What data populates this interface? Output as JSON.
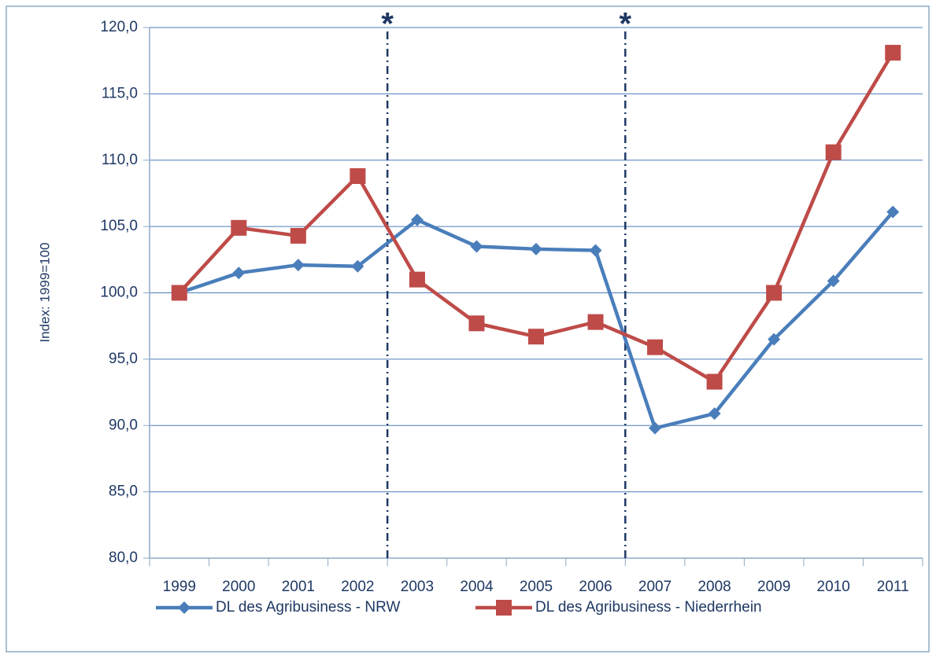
{
  "chart_data": {
    "type": "line",
    "y_axis_label": "Index: 1999=100",
    "categories": [
      "1999",
      "2000",
      "2001",
      "2002",
      "2003",
      "2004",
      "2005",
      "2006",
      "2007",
      "2008",
      "2009",
      "2010",
      "2011"
    ],
    "series": [
      {
        "name": "DL des Agribusiness - NRW",
        "color": "#4a7ebb",
        "marker": "diamond",
        "values": [
          100.0,
          101.5,
          102.1,
          102.0,
          105.5,
          103.5,
          103.3,
          103.2,
          89.8,
          90.9,
          96.5,
          100.9,
          106.1
        ]
      },
      {
        "name": "DL des Agribusiness - Niederrhein",
        "color": "#be4b48",
        "marker": "square",
        "values": [
          100.0,
          104.9,
          104.3,
          108.8,
          101.0,
          97.7,
          96.7,
          97.8,
          95.9,
          93.3,
          100.0,
          110.6,
          118.1
        ]
      }
    ],
    "ylim": [
      80,
      120
    ],
    "yticks": [
      {
        "value": 80,
        "label": "80,0"
      },
      {
        "value": 85,
        "label": "85,0"
      },
      {
        "value": 90,
        "label": "90,0"
      },
      {
        "value": 95,
        "label": "95,0"
      },
      {
        "value": 100,
        "label": "100,0"
      },
      {
        "value": 105,
        "label": "105,0"
      },
      {
        "value": 110,
        "label": "110,0"
      },
      {
        "value": 115,
        "label": "115,0"
      },
      {
        "value": 120,
        "label": "120,0"
      }
    ],
    "grid": true,
    "annotations": [
      "*",
      "*"
    ],
    "legend": "bottom"
  }
}
